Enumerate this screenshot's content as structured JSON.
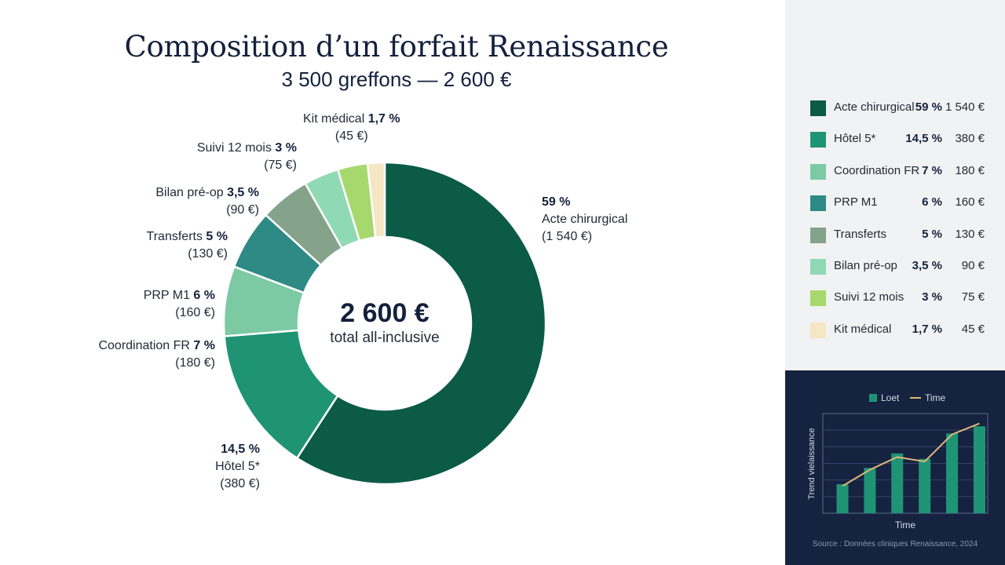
{
  "title": "Composition d’un forfait Renaissance",
  "subtitle": "3 500 greffons — 2 600 €",
  "center": {
    "value": "2 600 €",
    "label": "total all-inclusive"
  },
  "chart_data": [
    {
      "type": "pie",
      "title": "Composition d’un forfait Renaissance",
      "subtitle": "3 500 greffons — 2 600 €",
      "categories": [
        "Acte chirurgical",
        "Hôtel 5*",
        "Coordination FR",
        "PRP M1",
        "Transferts",
        "Bilan pré-op",
        "Suivi 12 mois",
        "Kit médical"
      ],
      "values": [
        59,
        14.5,
        7,
        6,
        5,
        3.5,
        3,
        1.7
      ],
      "percent_labels": [
        "59 %",
        "14,5 %",
        "7 %",
        "6 %",
        "5 %",
        "3,5 %",
        "3 %",
        "1,7 %"
      ],
      "amounts": [
        1540,
        380,
        180,
        160,
        130,
        90,
        75,
        45
      ],
      "amount_labels": [
        "(1 540 €)",
        "(380 €)",
        "(180 €)",
        "(160 €)",
        "(130 €)",
        "(90 €)",
        "(75 €)",
        "(45 €)"
      ],
      "colors": [
        "#0b5b46",
        "#1f9474",
        "#7ccaa4",
        "#2e8a85",
        "#84a38a",
        "#8fdab4",
        "#a6d86d",
        "#f5e6c4"
      ],
      "legend_amounts": [
        "1 540 €",
        "380 €",
        "180 €",
        "160 €",
        "130 €",
        "90 €",
        "75 €",
        "45 €"
      ],
      "center_value": "2 600 €",
      "center_label": "total all-inclusive",
      "legend_position": "right"
    },
    {
      "type": "bar",
      "legend": [
        {
          "name": "Loet",
          "color": "#1f9474"
        },
        {
          "name": "Time",
          "color": "#e2b77a"
        }
      ],
      "xlabel": "Time",
      "ylabel": "Trend vielaissance",
      "categories": [
        "",
        "",
        "",
        "",
        "",
        ""
      ],
      "series": [
        {
          "name": "Loet",
          "kind": "bar",
          "values": [
            3.2,
            5.0,
            6.6,
            6.0,
            8.8,
            9.6
          ]
        },
        {
          "name": "Time",
          "kind": "line",
          "values": [
            3.0,
            4.8,
            6.2,
            5.7,
            8.7,
            9.9
          ]
        }
      ],
      "ylim": [
        0,
        11
      ],
      "grid": true,
      "source": "Source : Données cliniques Renaissance, 2024"
    }
  ]
}
